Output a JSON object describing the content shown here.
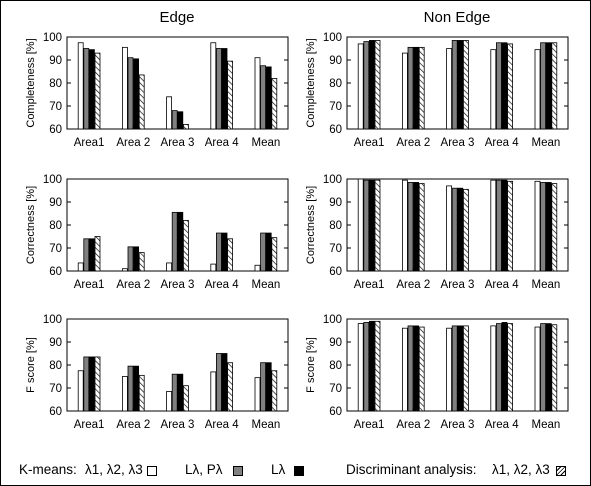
{
  "column_titles": [
    "Edge",
    "Non Edge"
  ],
  "legend": {
    "kmeans_label": "K-means:",
    "kmeans_features": "λ1, λ2, λ3",
    "lp_label": "Lλ, Pλ",
    "l_label": "Lλ",
    "da_label": "Discriminant analysis:",
    "da_features": "λ1, λ2, λ3"
  },
  "series_styles": [
    {
      "legend": "K-means λ1, λ2, λ3",
      "fill": "white"
    },
    {
      "legend": "K-means Lλ, Pλ",
      "fill": "#808080"
    },
    {
      "legend": "K-means Lλ",
      "fill": "#000000"
    },
    {
      "legend": "Discriminant analysis λ1, λ2, λ3",
      "fill": "hatch"
    }
  ],
  "chart_data": [
    {
      "type": "bar",
      "column": "Edge",
      "ylabel": "Completeness [%]",
      "ylim": [
        60,
        100
      ],
      "yticks": [
        60,
        70,
        80,
        90,
        100
      ],
      "categories": [
        "Area1",
        "Area 2",
        "Area 3",
        "Area 4",
        "Mean"
      ],
      "series": [
        {
          "name": "K-means λ1, λ2, λ3",
          "values": [
            97.5,
            95.5,
            74,
            97.5,
            91
          ]
        },
        {
          "name": "K-means Lλ, Pλ",
          "values": [
            95,
            91,
            68,
            95,
            87.5
          ]
        },
        {
          "name": "K-means Lλ",
          "values": [
            94.5,
            90.5,
            67.5,
            95,
            87
          ]
        },
        {
          "name": "Discriminant analysis λ1, λ2, λ3",
          "values": [
            93,
            83.5,
            62,
            89.5,
            82
          ]
        }
      ]
    },
    {
      "type": "bar",
      "column": "Non Edge",
      "ylabel": "Completeness [%]",
      "ylim": [
        60,
        100
      ],
      "yticks": [
        60,
        70,
        80,
        90,
        100
      ],
      "categories": [
        "Area1",
        "Area 2",
        "Area 3",
        "Area 4",
        "Mean"
      ],
      "series": [
        {
          "name": "K-means λ1, λ2, λ3",
          "values": [
            97,
            93,
            95,
            94.5,
            94.5
          ]
        },
        {
          "name": "K-means Lλ, Pλ",
          "values": [
            98,
            95.5,
            98.5,
            97.5,
            97.5
          ]
        },
        {
          "name": "K-means Lλ",
          "values": [
            98.5,
            95.5,
            98.5,
            97.5,
            97.5
          ]
        },
        {
          "name": "Discriminant analysis λ1, λ2, λ3",
          "values": [
            98.5,
            95.5,
            98.5,
            97,
            97.5
          ]
        }
      ]
    },
    {
      "type": "bar",
      "column": "Edge",
      "ylabel": "Correctness [%]",
      "ylim": [
        60,
        100
      ],
      "yticks": [
        60,
        70,
        80,
        90,
        100
      ],
      "categories": [
        "Area1",
        "Area 2",
        "Area 3",
        "Area 4",
        "Mean"
      ],
      "series": [
        {
          "name": "K-means λ1, λ2, λ3",
          "values": [
            63.5,
            61,
            63.5,
            63,
            62.5
          ]
        },
        {
          "name": "K-means Lλ, Pλ",
          "values": [
            74,
            70.5,
            85.5,
            76.5,
            76.5
          ]
        },
        {
          "name": "K-means Lλ",
          "values": [
            74,
            70.5,
            85.5,
            76.5,
            76.5
          ]
        },
        {
          "name": "Discriminant analysis λ1, λ2, λ3",
          "values": [
            75,
            68,
            82,
            74,
            74.5
          ]
        }
      ]
    },
    {
      "type": "bar",
      "column": "Non Edge",
      "ylabel": "Correctness [%]",
      "ylim": [
        60,
        100
      ],
      "yticks": [
        60,
        70,
        80,
        90,
        100
      ],
      "categories": [
        "Area1",
        "Area 2",
        "Area 3",
        "Area 4",
        "Mean"
      ],
      "series": [
        {
          "name": "K-means λ1, λ2, λ3",
          "values": [
            100,
            99.5,
            97,
            99.5,
            99
          ]
        },
        {
          "name": "K-means Lλ, Pλ",
          "values": [
            99.5,
            98.5,
            96,
            99.5,
            98.5
          ]
        },
        {
          "name": "K-means Lλ",
          "values": [
            99.5,
            98.5,
            96,
            99.5,
            98.5
          ]
        },
        {
          "name": "Discriminant analysis λ1, λ2, λ3",
          "values": [
            99.5,
            98,
            95.5,
            99,
            98
          ]
        }
      ]
    },
    {
      "type": "bar",
      "column": "Edge",
      "ylabel": "F score [%]",
      "ylim": [
        60,
        100
      ],
      "yticks": [
        60,
        70,
        80,
        90,
        100
      ],
      "categories": [
        "Area1",
        "Area 2",
        "Area 3",
        "Area 4",
        "Mean"
      ],
      "series": [
        {
          "name": "K-means λ1, λ2, λ3",
          "values": [
            77.5,
            75,
            68.5,
            77,
            74.5
          ]
        },
        {
          "name": "K-means Lλ, Pλ",
          "values": [
            83.5,
            79.5,
            76,
            85,
            81
          ]
        },
        {
          "name": "K-means Lλ",
          "values": [
            83.5,
            79.5,
            76,
            85,
            81
          ]
        },
        {
          "name": "Discriminant analysis λ1, λ2, λ3",
          "values": [
            83.5,
            75.5,
            71,
            81,
            77.5
          ]
        }
      ]
    },
    {
      "type": "bar",
      "column": "Non Edge",
      "ylabel": "F score [%]",
      "ylim": [
        60,
        100
      ],
      "yticks": [
        60,
        70,
        80,
        90,
        100
      ],
      "categories": [
        "Area1",
        "Area 2",
        "Area 3",
        "Area 4",
        "Mean"
      ],
      "series": [
        {
          "name": "K-means λ1, λ2, λ3",
          "values": [
            98,
            96,
            96,
            97,
            96.5
          ]
        },
        {
          "name": "K-means Lλ, Pλ",
          "values": [
            98.5,
            97,
            97,
            98,
            98
          ]
        },
        {
          "name": "K-means Lλ",
          "values": [
            99,
            97,
            97,
            98.5,
            98
          ]
        },
        {
          "name": "Discriminant analysis λ1, λ2, λ3",
          "values": [
            99,
            96.5,
            97,
            98,
            97.5
          ]
        }
      ]
    }
  ]
}
